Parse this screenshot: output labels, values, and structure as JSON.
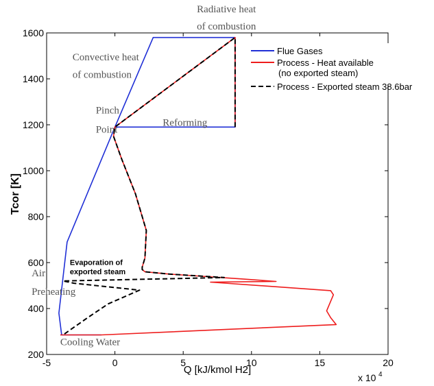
{
  "chart_data": {
    "type": "line",
    "xlabel": "Q [kJ/kmol H2]",
    "ylabel": "Tcor [K]",
    "x_multiplier": "x 10",
    "x_multiplier_exp": "4",
    "xlim": [
      -5,
      20
    ],
    "ylim": [
      200,
      1600
    ],
    "x_ticks": [
      -5,
      0,
      5,
      10,
      15,
      20
    ],
    "y_ticks": [
      200,
      400,
      600,
      800,
      1000,
      1200,
      1400,
      1600
    ],
    "grid": false,
    "legend_position": "top-right",
    "series": [
      {
        "name": "Flue Gases",
        "color": "#1f2fd6",
        "style": "solid",
        "points": [
          [
            2.8,
            1580
          ],
          [
            8.8,
            1580
          ],
          [
            8.8,
            1190
          ],
          [
            0,
            1190
          ],
          [
            2.8,
            1580
          ],
          [
            0,
            1190
          ],
          [
            -3.5,
            690
          ],
          [
            -4.1,
            380
          ],
          [
            -3.9,
            285
          ],
          [
            -1.0,
            285
          ]
        ]
      },
      {
        "name": "Process - Heat available",
        "name_line2": "(no exported steam)",
        "color": "#ee1c1c",
        "style": "solid",
        "points": [
          [
            8.8,
            1190
          ],
          [
            8.8,
            1580
          ],
          [
            0,
            1190
          ],
          [
            -0.1,
            1150
          ],
          [
            0.5,
            1050
          ],
          [
            1.5,
            900
          ],
          [
            2.3,
            740
          ],
          [
            2.2,
            620
          ],
          [
            2.0,
            580
          ],
          [
            2.0,
            570
          ],
          [
            2.2,
            560
          ],
          [
            4.0,
            550
          ],
          [
            9.0,
            530
          ],
          [
            11.8,
            518
          ],
          [
            7.0,
            515
          ],
          [
            15.8,
            478
          ],
          [
            16.0,
            460
          ],
          [
            15.5,
            390
          ],
          [
            15.8,
            360
          ],
          [
            16.2,
            330
          ],
          [
            -1.0,
            285
          ],
          [
            -4.0,
            285
          ]
        ]
      },
      {
        "name": "Process - Exported steam 38.6bar",
        "color": "#000000",
        "style": "dashed",
        "points": [
          [
            8.8,
            1190
          ],
          [
            8.8,
            1580
          ],
          [
            0,
            1190
          ],
          [
            -0.1,
            1150
          ],
          [
            0.5,
            1050
          ],
          [
            1.5,
            900
          ],
          [
            2.3,
            740
          ],
          [
            2.2,
            620
          ],
          [
            2.0,
            580
          ],
          [
            2.0,
            570
          ],
          [
            2.2,
            560
          ],
          [
            4.0,
            550
          ],
          [
            8.0,
            535
          ],
          [
            -3.8,
            520
          ],
          [
            -3.0,
            510
          ],
          [
            1.8,
            480
          ],
          [
            -0.5,
            420
          ],
          [
            -2.0,
            360
          ],
          [
            -3.8,
            285
          ]
        ]
      }
    ],
    "annotations": [
      {
        "text": "Radiative heat",
        "x": 6.0,
        "y": 1690
      },
      {
        "text": "of combustion",
        "x": 6.0,
        "y": 1615
      },
      {
        "text": "Convective heat",
        "x": -3.1,
        "y": 1480
      },
      {
        "text": "of combustion",
        "x": -3.1,
        "y": 1405
      },
      {
        "text": "Pinch",
        "x": -1.4,
        "y": 1250
      },
      {
        "text": "Point",
        "x": -1.4,
        "y": 1165
      },
      {
        "text": "Reforming",
        "x": 3.5,
        "y": 1195
      },
      {
        "text": "Evaporation of",
        "x": -3.3,
        "y": 590,
        "bold": true
      },
      {
        "text": "exported steam",
        "x": -3.3,
        "y": 550,
        "bold": true
      },
      {
        "text": "Air",
        "x": -6.1,
        "y": 540
      },
      {
        "text": "Preheating",
        "x": -6.1,
        "y": 460
      },
      {
        "text": "Cooling Water",
        "x": -4.0,
        "y": 240
      }
    ]
  }
}
